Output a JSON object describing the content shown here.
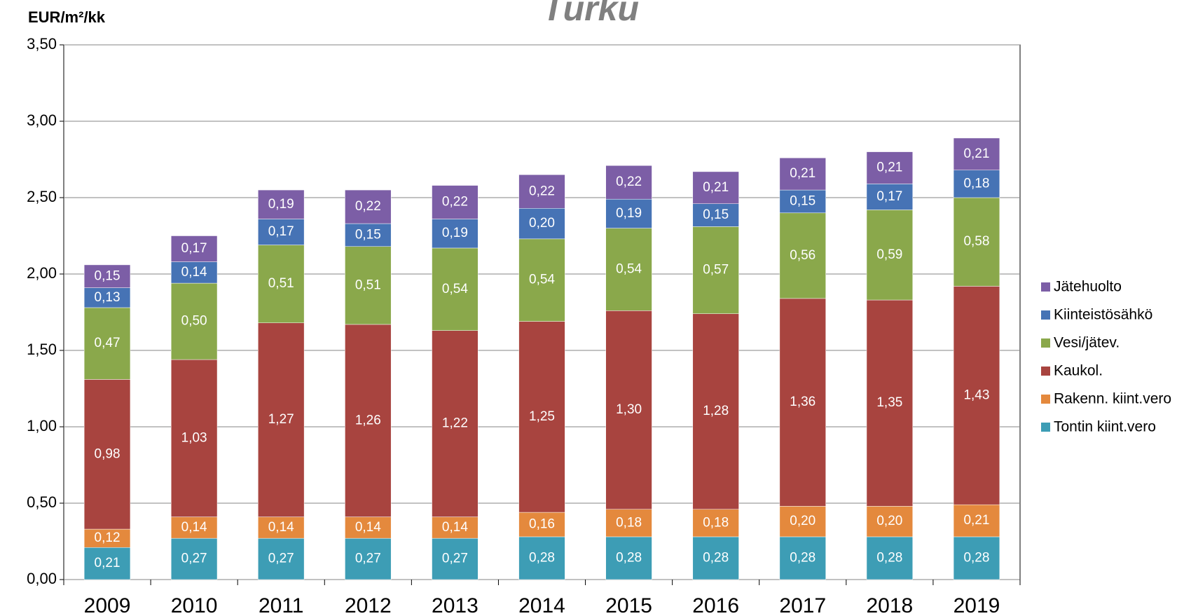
{
  "chart_data": {
    "type": "stacked_bar",
    "title": "Turku",
    "y_label": "EUR/m²/kk",
    "categories": [
      "2009",
      "2010",
      "2011",
      "2012",
      "2013",
      "2014",
      "2015",
      "2016",
      "2017",
      "2018",
      "2019"
    ],
    "series": [
      {
        "name": "Tontin kiint.vero",
        "color": "#3d9db5",
        "values": [
          0.21,
          0.27,
          0.27,
          0.27,
          0.27,
          0.28,
          0.28,
          0.28,
          0.28,
          0.28,
          0.28
        ],
        "value_labels": [
          "0,21",
          "0,27",
          "0,27",
          "0,27",
          "0,27",
          "0,28",
          "0,28",
          "0,28",
          "0,28",
          "0,28",
          "0,28"
        ]
      },
      {
        "name": "Rakenn. kiint.vero",
        "color": "#e4893d",
        "values": [
          0.12,
          0.14,
          0.14,
          0.14,
          0.14,
          0.16,
          0.18,
          0.18,
          0.2,
          0.2,
          0.21
        ],
        "value_labels": [
          "0,12",
          "0,14",
          "0,14",
          "0,14",
          "0,14",
          "0,16",
          "0,18",
          "0,18",
          "0,20",
          "0,20",
          "0,21"
        ]
      },
      {
        "name": "Kaukol.",
        "color": "#a8443f",
        "values": [
          0.98,
          1.03,
          1.27,
          1.26,
          1.22,
          1.25,
          1.3,
          1.28,
          1.36,
          1.35,
          1.43
        ],
        "value_labels": [
          "0,98",
          "1,03",
          "1,27",
          "1,26",
          "1,22",
          "1,25",
          "1,30",
          "1,28",
          "1,36",
          "1,35",
          "1,43"
        ]
      },
      {
        "name": "Vesi/jätev.",
        "color": "#8aa84b",
        "values": [
          0.47,
          0.5,
          0.51,
          0.51,
          0.54,
          0.54,
          0.54,
          0.57,
          0.56,
          0.59,
          0.58
        ],
        "value_labels": [
          "0,47",
          "0,50",
          "0,51",
          "0,51",
          "0,54",
          "0,54",
          "0,54",
          "0,57",
          "0,56",
          "0,59",
          "0,58"
        ]
      },
      {
        "name": "Kiinteistösähkö",
        "color": "#4673b5",
        "values": [
          0.13,
          0.14,
          0.17,
          0.15,
          0.19,
          0.2,
          0.19,
          0.15,
          0.15,
          0.17,
          0.18
        ],
        "value_labels": [
          "0,13",
          "0,14",
          "0,17",
          "0,15",
          "0,19",
          "0,20",
          "0,19",
          "0,15",
          "0,15",
          "0,17",
          "0,18"
        ]
      },
      {
        "name": "Jätehuolto",
        "color": "#7c5ea6",
        "values": [
          0.15,
          0.17,
          0.19,
          0.22,
          0.22,
          0.22,
          0.22,
          0.21,
          0.21,
          0.21,
          0.21
        ],
        "value_labels": [
          "0,15",
          "0,17",
          "0,19",
          "0,22",
          "0,22",
          "0,22",
          "0,22",
          "0,21",
          "0,21",
          "0,21",
          "0,21"
        ]
      }
    ],
    "ylim": [
      0,
      3.5
    ],
    "yticks": [
      {
        "value": 0,
        "label": "0,00"
      },
      {
        "value": 0.5,
        "label": "0,50"
      },
      {
        "value": 1,
        "label": "1,00"
      },
      {
        "value": 1.5,
        "label": "1,50"
      },
      {
        "value": 2,
        "label": "2,00"
      },
      {
        "value": 2.5,
        "label": "2,50"
      },
      {
        "value": 3,
        "label": "3,00"
      },
      {
        "value": 3.5,
        "label": "3,50"
      }
    ],
    "grid": true,
    "legend": "right"
  }
}
